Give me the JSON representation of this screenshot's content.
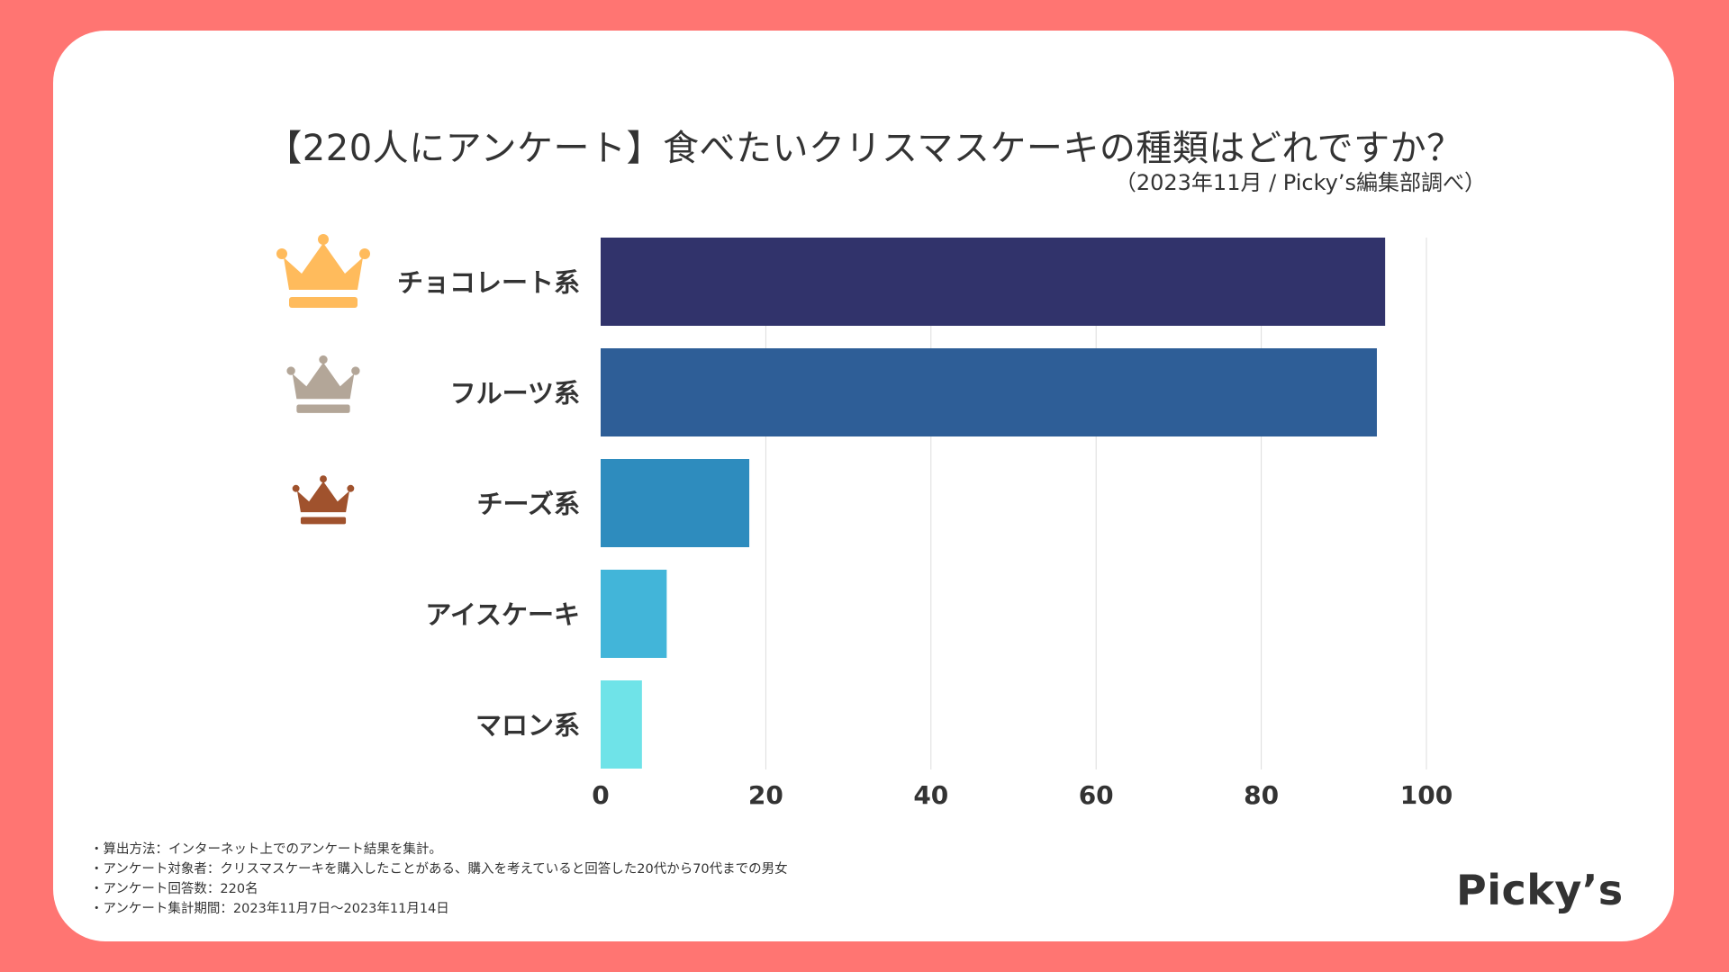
{
  "colors": {
    "background": "#ff7572",
    "card": "#ffffff",
    "text": "#333333",
    "grid": "#dddddd",
    "gold": "#ffbb5c",
    "silver": "#b3a698",
    "bronze": "#a0522d"
  },
  "header": {
    "title": "【220人にアンケート】食べたいクリスマスケーキの種類はどれですか？",
    "subtitle": "（2023年11月 / Picky’s編集部調べ）"
  },
  "chart_data": {
    "type": "bar",
    "orientation": "horizontal",
    "title": "【220人にアンケート】食べたいクリスマスケーキの種類はどれですか？",
    "subtitle": "（2023年11月 / Picky’s編集部調べ）",
    "categories": [
      "チョコレート系",
      "フルーツ系",
      "チーズ系",
      "アイスケーキ",
      "マロン系"
    ],
    "values": [
      95,
      94,
      18,
      8,
      5
    ],
    "bar_colors": [
      "#31336b",
      "#2e5e97",
      "#2e8cbe",
      "#42b5d9",
      "#6fe3e8"
    ],
    "rank_icons": [
      "crown-gold-icon",
      "crown-silver-icon",
      "crown-bronze-icon"
    ],
    "xlim": [
      0,
      100
    ],
    "xticks": [
      "0",
      "20",
      "40",
      "60",
      "80",
      "100"
    ],
    "xlabel": "",
    "ylabel": "",
    "grid": true
  },
  "notes": [
    "・算出方法：インターネット上でのアンケート結果を集計。",
    "・アンケート対象者：クリスマスケーキを購入したことがある、購入を考えていると回答した20代から70代までの男女",
    "・アンケート回答数：220名",
    "・アンケート集計期間：2023年11月7日〜2023年11月14日"
  ],
  "logo": {
    "text": "Picky’s"
  }
}
